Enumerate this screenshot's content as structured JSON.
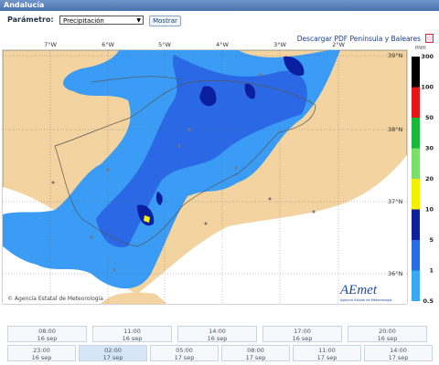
{
  "header": {
    "title": "Andalucía"
  },
  "form": {
    "label": "Parámetro:",
    "select": "Precipitación",
    "button": "Mostrar"
  },
  "download_link": "Descargar PDF Península y Baleares",
  "map": {
    "lon_labels": [
      "7°W",
      "6°W",
      "5°W",
      "4°W",
      "3°W",
      "2°W"
    ],
    "lat_labels": [
      "39°N",
      "38°N",
      "37°N",
      "36°N"
    ],
    "credit": "© Agencia Estatal de Meteorología",
    "logo": "AEmet",
    "logo_sub": "Agencia Estatal de Meteorología"
  },
  "legend": {
    "unit": "mm",
    "levels": [
      300,
      100,
      50,
      30,
      20,
      10,
      5,
      1,
      0.5
    ]
  },
  "times": {
    "row1": [
      {
        "time": "08:00",
        "date": "16 sep"
      },
      {
        "time": "11:00",
        "date": "16 sep"
      },
      {
        "time": "14:00",
        "date": "16 sep"
      },
      {
        "time": "17:00",
        "date": "16 sep"
      },
      {
        "time": "20:00",
        "date": "16 sep"
      }
    ],
    "row2": [
      {
        "time": "23:00",
        "date": "16 sep"
      },
      {
        "time": "02:00",
        "date": "17 sep"
      },
      {
        "time": "05:00",
        "date": "17 sep"
      },
      {
        "time": "08:00",
        "date": "17 sep"
      },
      {
        "time": "11:00",
        "date": "17 sep"
      },
      {
        "time": "14:00",
        "date": "17 sep"
      }
    ]
  }
}
